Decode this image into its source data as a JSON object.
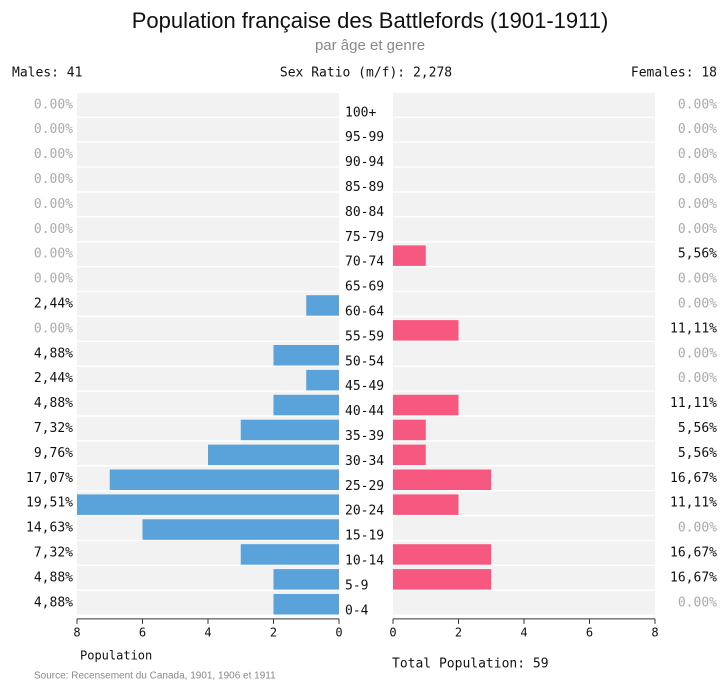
{
  "chart_data": {
    "type": "pyramid",
    "title": "Population française des Battlefords (1901-1911)",
    "subtitle": "par âge et genre",
    "left_header": "Males: 41",
    "center_header": "Sex Ratio (m/f): 2,278",
    "right_header": "Females: 18",
    "xlabel": "Population",
    "total_label": "Total Population: 59",
    "source": "Source: Recensement du Canada, 1901, 1906 et 1911",
    "categories": [
      "100+",
      "95-99",
      "90-94",
      "85-89",
      "80-84",
      "75-79",
      "70-74",
      "65-69",
      "60-64",
      "55-59",
      "50-54",
      "45-49",
      "40-44",
      "35-39",
      "30-34",
      "25-29",
      "20-24",
      "15-19",
      "10-14",
      "5-9",
      "0-4"
    ],
    "series": [
      {
        "name": "Males",
        "color": "#5aa3da",
        "values": [
          0,
          0,
          0,
          0,
          0,
          0,
          0,
          0,
          1,
          0,
          2,
          1,
          2,
          3,
          4,
          7,
          8,
          6,
          3,
          2,
          2
        ],
        "value_labels": [
          "0.00%",
          "0.00%",
          "0.00%",
          "0.00%",
          "0.00%",
          "0.00%",
          "0.00%",
          "0.00%",
          "2,44%",
          "0.00%",
          "4,88%",
          "2,44%",
          "4,88%",
          "7,32%",
          "9,76%",
          "17,07%",
          "19,51%",
          "14,63%",
          "7,32%",
          "4,88%",
          "4,88%"
        ]
      },
      {
        "name": "Females",
        "color": "#f7587f",
        "values": [
          0,
          0,
          0,
          0,
          0,
          0,
          1,
          0,
          0,
          2,
          0,
          0,
          2,
          1,
          1,
          3,
          2,
          0,
          3,
          3,
          0
        ],
        "value_labels": [
          "0.00%",
          "0.00%",
          "0.00%",
          "0.00%",
          "0.00%",
          "0.00%",
          "5,56%",
          "0.00%",
          "0.00%",
          "11,11%",
          "0.00%",
          "0.00%",
          "11,11%",
          "5,56%",
          "5,56%",
          "16,67%",
          "11,11%",
          "0.00%",
          "16,67%",
          "16,67%",
          "0.00%"
        ]
      }
    ],
    "xlim": [
      0,
      8
    ],
    "xticks": [
      0,
      2,
      4,
      6,
      8
    ]
  }
}
